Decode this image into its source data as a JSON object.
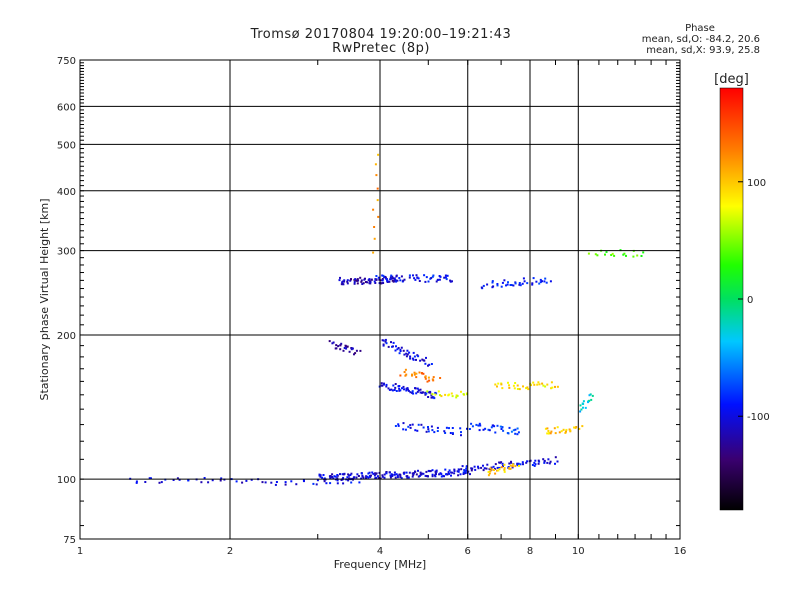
{
  "chart_data": {
    "type": "scatter",
    "title": "Tromsø 20170804 19:20:00–19:21:43",
    "subtitle": "RwPretec (8p)",
    "xlabel": "Frequency [MHz]",
    "ylabel": "Stationary phase Virtual Height [km]",
    "x_scale": "log",
    "y_scale": "log",
    "xlim": [
      1,
      16
    ],
    "ylim": [
      75,
      750
    ],
    "x_ticks": [
      1,
      2,
      4,
      6,
      8,
      10,
      16
    ],
    "x_tick_labels": [
      "1",
      "2",
      "4",
      "6",
      "8",
      "10",
      "16"
    ],
    "y_ticks": [
      75,
      100,
      200,
      300,
      400,
      500,
      600,
      750
    ],
    "y_tick_labels": [
      "75",
      "100",
      "200",
      "300",
      "400",
      "500",
      "600",
      "750"
    ],
    "grid": true,
    "phase_stats": {
      "header": "Phase",
      "line1": "mean, sd,O: -84.2, 20.6",
      "line2": "mean, sd,X:  93.9, 25.8"
    },
    "colorbar": {
      "label": "[deg]",
      "range": [
        -180,
        180
      ],
      "ticks": [
        100,
        0,
        -100
      ],
      "tick_labels": [
        "100",
        "0",
        "-100"
      ]
    },
    "clusters": [
      {
        "f": [
          1.25,
          3.6
        ],
        "h": [
          100,
          99
        ],
        "phase": -100,
        "n": 50
      },
      {
        "f": [
          3.0,
          6.0
        ],
        "h": [
          101,
          104
        ],
        "phase": -105,
        "n": 180
      },
      {
        "f": [
          5.8,
          9.0
        ],
        "h": [
          105,
          110
        ],
        "phase": -100,
        "n": 70
      },
      {
        "f": [
          6.5,
          7.5
        ],
        "h": [
          104,
          107
        ],
        "phase": 100,
        "n": 25
      },
      {
        "f": [
          3.3,
          4.3
        ],
        "h": [
          260,
          262
        ],
        "phase": -115,
        "n": 70
      },
      {
        "f": [
          3.9,
          5.6
        ],
        "h": [
          263,
          264
        ],
        "phase": -95,
        "n": 55
      },
      {
        "f": [
          6.4,
          8.7
        ],
        "h": [
          255,
          262
        ],
        "phase": -90,
        "n": 40
      },
      {
        "f": [
          3.2,
          3.6
        ],
        "h": [
          192,
          185
        ],
        "phase": -120,
        "n": 28
      },
      {
        "f": [
          4.0,
          5.0
        ],
        "h": [
          195,
          175
        ],
        "phase": -100,
        "n": 45
      },
      {
        "f": [
          4.4,
          5.2
        ],
        "h": [
          168,
          162
        ],
        "phase": 130,
        "n": 25
      },
      {
        "f": [
          4.0,
          5.2
        ],
        "h": [
          158,
          150
        ],
        "phase": -100,
        "n": 60
      },
      {
        "f": [
          5.0,
          6.0
        ],
        "h": [
          152,
          150
        ],
        "phase": 80,
        "n": 20
      },
      {
        "f": [
          6.8,
          9.0
        ],
        "h": [
          157,
          158
        ],
        "phase": 90,
        "n": 35
      },
      {
        "f": [
          4.3,
          5.8
        ],
        "h": [
          130,
          126
        ],
        "phase": -95,
        "n": 35
      },
      {
        "f": [
          6.0,
          7.6
        ],
        "h": [
          130,
          126
        ],
        "phase": -80,
        "n": 35
      },
      {
        "f": [
          8.5,
          10.0
        ],
        "h": [
          127,
          128
        ],
        "phase": 100,
        "n": 25
      },
      {
        "f": [
          10.0,
          10.6
        ],
        "h": [
          140,
          150
        ],
        "phase": -30,
        "n": 15
      },
      {
        "f": [
          10.5,
          13.5
        ],
        "h": [
          300,
          297
        ],
        "phase": 40,
        "n": 18
      },
      {
        "f": [
          3.9,
          3.9
        ],
        "h": [
          300,
          480
        ],
        "phase": 120,
        "n": 10
      }
    ]
  }
}
